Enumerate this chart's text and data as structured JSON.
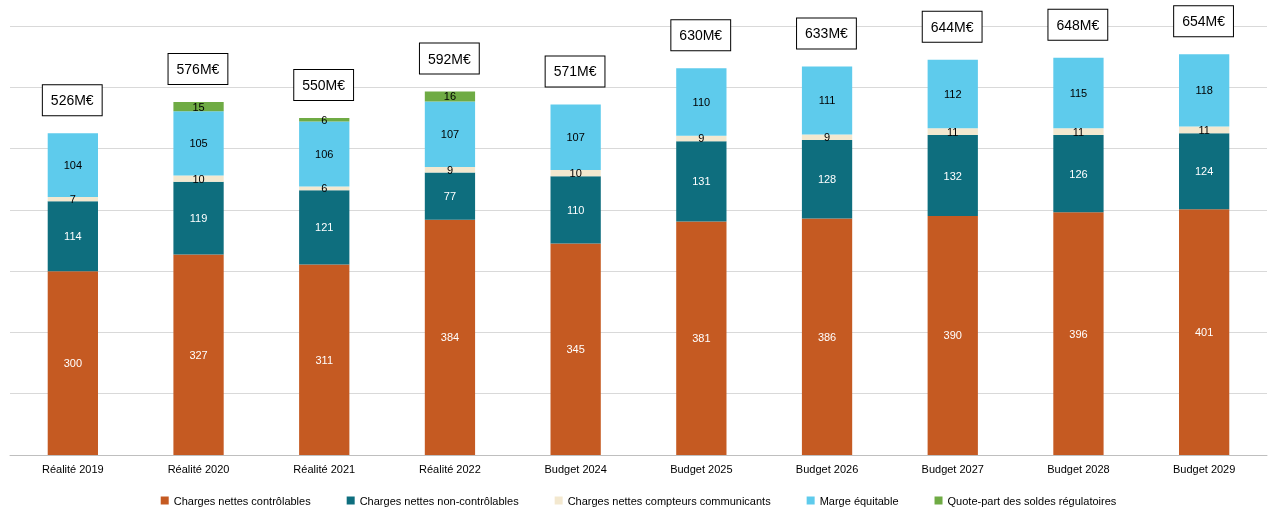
{
  "chart_data": {
    "type": "bar",
    "stacked": true,
    "data_labels": true,
    "legend": "bottom",
    "grid": "y",
    "tick_labels": "x",
    "categories": [
      "Réalité 2019",
      "Réalité 2020",
      "Réalité 2021",
      "Réalité 2022",
      "Budget 2024",
      "Budget 2025",
      "Budget 2026",
      "Budget 2027",
      "Budget 2028",
      "Budget 2029"
    ],
    "ylim": [
      0,
      700
    ],
    "yticks": [
      {
        "value": 0,
        "label": null
      },
      {
        "value": 100,
        "label": null
      },
      {
        "value": 200,
        "label": null
      },
      {
        "value": 300,
        "label": null
      },
      {
        "value": 400,
        "label": null
      },
      {
        "value": 500,
        "label": null
      },
      {
        "value": 600,
        "label": null
      },
      {
        "value": 700,
        "label": null
      }
    ],
    "series": [
      {
        "name": "Charges nettes contrôlables",
        "color": "#c55a22",
        "values": [
          300,
          327,
          311,
          384,
          345,
          381,
          386,
          390,
          396,
          401
        ]
      },
      {
        "name": "Charges nettes non-contrôlables",
        "color": "#0e6e7e",
        "values": [
          114,
          119,
          121,
          77,
          110,
          131,
          128,
          132,
          126,
          124
        ]
      },
      {
        "name": "Charges nettes compteurs communicants",
        "color": "#f3e8cf",
        "values": [
          7,
          10,
          6,
          9,
          10,
          9,
          9,
          11,
          11,
          11
        ]
      },
      {
        "name": "Marge équitable",
        "color": "#5ecbec",
        "values": [
          104,
          105,
          106,
          107,
          107,
          110,
          111,
          112,
          115,
          118
        ]
      },
      {
        "name": "Quote-part des soldes régulatoires",
        "color": "#6fab44",
        "values": [
          null,
          15,
          6,
          16,
          null,
          null,
          null,
          null,
          null,
          null
        ]
      }
    ],
    "totals": [
      "526M€",
      "576M€",
      "550M€",
      "592M€",
      "571M€",
      "630M€",
      "633M€",
      "644M€",
      "648M€",
      "654M€"
    ]
  }
}
